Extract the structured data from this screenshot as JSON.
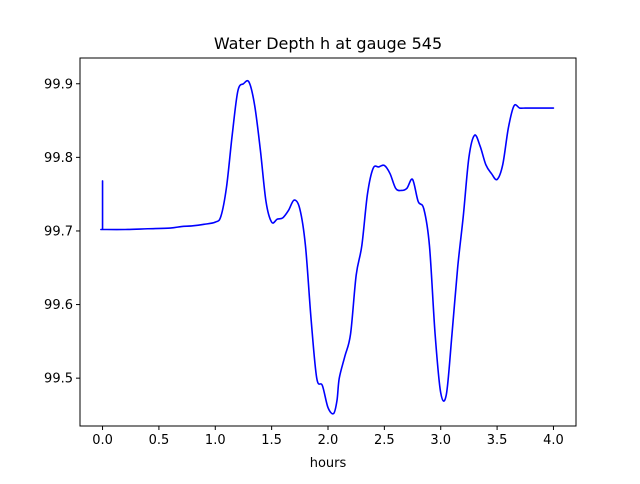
{
  "chart_data": {
    "type": "line",
    "title": "Water Depth h at gauge 545",
    "xlabel": "hours",
    "ylabel": "",
    "xlim": [
      -0.2,
      4.2
    ],
    "ylim": [
      99.435,
      99.935
    ],
    "xticks": [
      0.0,
      0.5,
      1.0,
      1.5,
      2.0,
      2.5,
      3.0,
      3.5,
      4.0
    ],
    "xtick_labels": [
      "0.0",
      "0.5",
      "1.0",
      "1.5",
      "2.0",
      "2.5",
      "3.0",
      "3.5",
      "4.0"
    ],
    "yticks": [
      99.5,
      99.6,
      99.7,
      99.8,
      99.9
    ],
    "ytick_labels": [
      "99.5",
      "99.6",
      "99.7",
      "99.8",
      "99.9"
    ],
    "grid": false,
    "series": [
      {
        "color": "#0000ff",
        "x": [
          0.0,
          0.0,
          0.0,
          0.2,
          0.4,
          0.6,
          0.7,
          0.8,
          0.9,
          1.0,
          1.05,
          1.1,
          1.15,
          1.2,
          1.25,
          1.3,
          1.35,
          1.4,
          1.45,
          1.5,
          1.55,
          1.6,
          1.65,
          1.7,
          1.75,
          1.8,
          1.85,
          1.9,
          1.95,
          2.0,
          2.05,
          2.08,
          2.1,
          2.15,
          2.2,
          2.25,
          2.3,
          2.35,
          2.4,
          2.45,
          2.5,
          2.55,
          2.6,
          2.65,
          2.7,
          2.75,
          2.8,
          2.85,
          2.9,
          2.95,
          3.0,
          3.05,
          3.1,
          3.15,
          3.2,
          3.25,
          3.3,
          3.35,
          3.4,
          3.45,
          3.5,
          3.55,
          3.6,
          3.65,
          3.7,
          3.75,
          3.8,
          3.85,
          3.9,
          3.95,
          4.0
        ],
        "y": [
          99.768,
          99.702,
          99.702,
          99.702,
          99.703,
          99.704,
          99.706,
          99.707,
          99.709,
          99.712,
          99.72,
          99.76,
          99.83,
          99.89,
          99.9,
          99.902,
          99.87,
          99.81,
          99.74,
          99.712,
          99.716,
          99.718,
          99.728,
          99.742,
          99.73,
          99.68,
          99.58,
          99.5,
          99.49,
          99.46,
          99.452,
          99.47,
          99.5,
          99.53,
          99.56,
          99.64,
          99.68,
          99.75,
          99.785,
          99.787,
          99.789,
          99.778,
          99.758,
          99.755,
          99.758,
          99.77,
          99.74,
          99.73,
          99.68,
          99.56,
          99.48,
          99.478,
          99.56,
          99.65,
          99.72,
          99.8,
          99.83,
          99.815,
          99.79,
          99.778,
          99.77,
          99.79,
          99.84,
          99.87,
          99.867,
          99.867,
          99.867,
          99.867,
          99.867,
          99.867,
          99.867
        ]
      }
    ]
  }
}
